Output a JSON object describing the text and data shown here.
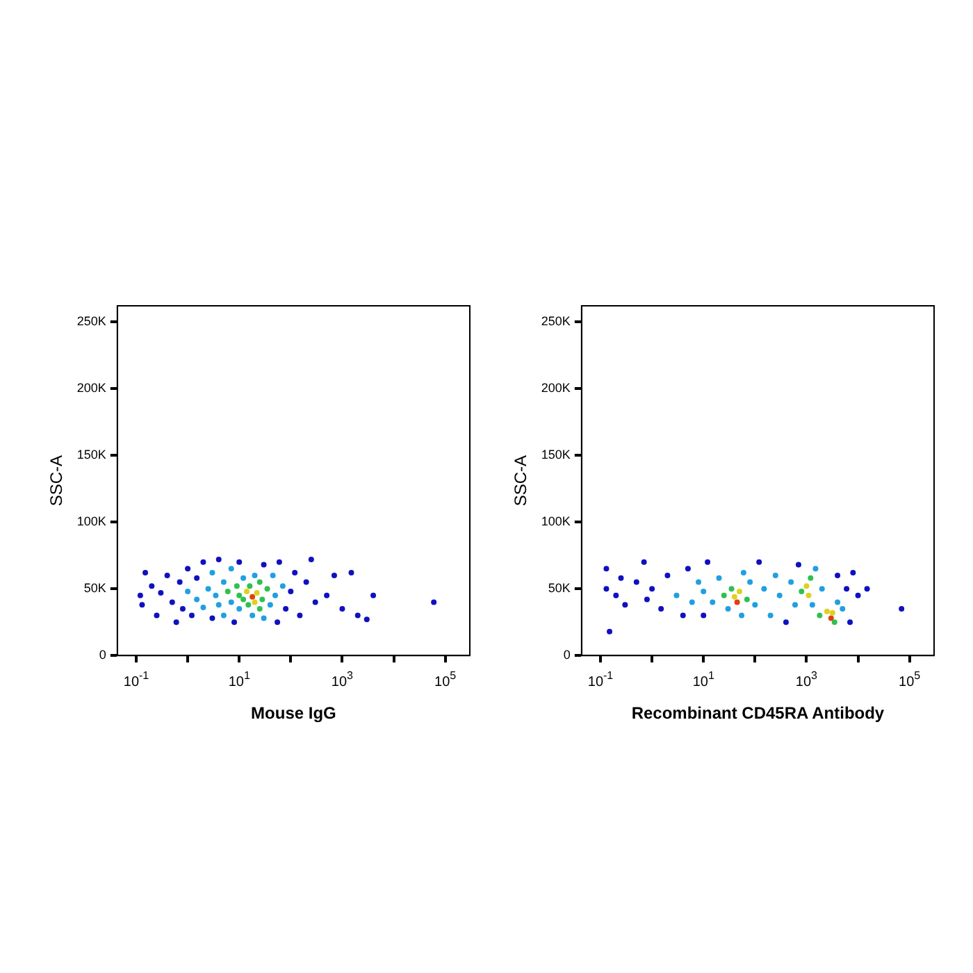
{
  "chart_data": [
    {
      "type": "scatter",
      "xlabel": "Mouse IgG",
      "ylabel": "SSC-A",
      "log": "x",
      "grid": false,
      "legend": false,
      "marker": "circle",
      "xlim": [
        0.043,
        300000
      ],
      "xticks": [
        {
          "value": 0.1,
          "label": "10$^{-1}$"
        },
        {
          "value": 1,
          "label": null
        },
        {
          "value": 10,
          "label": "10$^{1}$"
        },
        {
          "value": 100,
          "label": null
        },
        {
          "value": 1000,
          "label": "10$^{3}$"
        },
        {
          "value": 10000,
          "label": null
        },
        {
          "value": 100000,
          "label": "10$^{5}$"
        }
      ],
      "ylim": [
        0,
        262000
      ],
      "yticks": [
        {
          "value": 0,
          "label": "0"
        },
        {
          "value": 50000,
          "label": "50K"
        },
        {
          "value": 100000,
          "label": "100K"
        },
        {
          "value": 150000,
          "label": "150K"
        },
        {
          "value": 200000,
          "label": "200K"
        },
        {
          "value": 250000,
          "label": "250K"
        }
      ],
      "series": [
        {
          "x": [
            0.12,
            0.13,
            0.15,
            0.2,
            0.25,
            0.3,
            0.4,
            0.5,
            0.6,
            0.7,
            0.8,
            1,
            1,
            1.2,
            1.5,
            1.5,
            2,
            2,
            2.5,
            3,
            3,
            3.5,
            4,
            4,
            5,
            5,
            6,
            7,
            7,
            8,
            9,
            10,
            10,
            10,
            12,
            12,
            14,
            15,
            16,
            18,
            18,
            20,
            20,
            22,
            25,
            25,
            28,
            30,
            30,
            35,
            40,
            45,
            50,
            55,
            60,
            70,
            80,
            100,
            120,
            150,
            200,
            250,
            300,
            500,
            700,
            1000,
            1500,
            2000,
            3000,
            4000,
            60000
          ],
          "values": [
            45000,
            38000,
            62000,
            52000,
            30000,
            47000,
            60000,
            40000,
            25000,
            55000,
            35000,
            65000,
            48000,
            30000,
            58000,
            42000,
            70000,
            36000,
            50000,
            28000,
            62000,
            45000,
            38000,
            72000,
            55000,
            30000,
            48000,
            40000,
            65000,
            25000,
            52000,
            45000,
            35000,
            70000,
            58000,
            42000,
            48000,
            38000,
            52000,
            44000,
            30000,
            40000,
            60000,
            47000,
            35000,
            55000,
            42000,
            68000,
            28000,
            50000,
            38000,
            60000,
            45000,
            25000,
            70000,
            52000,
            35000,
            48000,
            62000,
            30000,
            55000,
            72000,
            40000,
            45000,
            60000,
            35000,
            62000,
            30000,
            27000,
            45000,
            40000
          ],
          "colors": [
            "#1010c0",
            "#1010c0",
            "#1010c0",
            "#1010c0",
            "#1010c0",
            "#1010c0",
            "#1010c0",
            "#1010c0",
            "#1010c0",
            "#1010c0",
            "#1010c0",
            "#1010c0",
            "#20a0e0",
            "#1010c0",
            "#1010c0",
            "#20a0e0",
            "#1010c0",
            "#20a0e0",
            "#20a0e0",
            "#1010c0",
            "#20a0e0",
            "#20a0e0",
            "#20a0e0",
            "#1010c0",
            "#20a0e0",
            "#20a0e0",
            "#30c050",
            "#20a0e0",
            "#20a0e0",
            "#1010c0",
            "#30c050",
            "#30c050",
            "#20a0e0",
            "#1010c0",
            "#20a0e0",
            "#30c050",
            "#e0d020",
            "#30c050",
            "#30c050",
            "#e04010",
            "#20a0e0",
            "#e0d020",
            "#20a0e0",
            "#e0d020",
            "#30c050",
            "#30c050",
            "#30c050",
            "#1010c0",
            "#20a0e0",
            "#30c050",
            "#20a0e0",
            "#20a0e0",
            "#20a0e0",
            "#1010c0",
            "#1010c0",
            "#20a0e0",
            "#1010c0",
            "#1010c0",
            "#1010c0",
            "#1010c0",
            "#1010c0",
            "#1010c0",
            "#1010c0",
            "#1010c0",
            "#1010c0",
            "#1010c0",
            "#1010c0",
            "#1010c0",
            "#1010c0",
            "#1010c0",
            "#1010c0"
          ]
        }
      ]
    },
    {
      "type": "scatter",
      "xlabel": "Recombinant CD45RA Antibody",
      "ylabel": "SSC-A",
      "log": "x",
      "grid": false,
      "legend": false,
      "marker": "circle",
      "xlim": [
        0.043,
        300000
      ],
      "xticks": [
        {
          "value": 0.1,
          "label": "10$^{-1}$"
        },
        {
          "value": 1,
          "label": null
        },
        {
          "value": 10,
          "label": "10$^{1}$"
        },
        {
          "value": 100,
          "label": null
        },
        {
          "value": 1000,
          "label": "10$^{3}$"
        },
        {
          "value": 10000,
          "label": null
        },
        {
          "value": 100000,
          "label": "10$^{5}$"
        }
      ],
      "ylim": [
        0,
        262000
      ],
      "yticks": [
        {
          "value": 0,
          "label": "0"
        },
        {
          "value": 50000,
          "label": "50K"
        },
        {
          "value": 100000,
          "label": "100K"
        },
        {
          "value": 150000,
          "label": "150K"
        },
        {
          "value": 200000,
          "label": "200K"
        },
        {
          "value": 250000,
          "label": "250K"
        }
      ],
      "series": [
        {
          "x": [
            0.13,
            0.13,
            0.15,
            0.2,
            0.25,
            0.3,
            0.5,
            0.7,
            0.8,
            1,
            1.5,
            2,
            3,
            4,
            5,
            6,
            8,
            10,
            10,
            12,
            15,
            20,
            25,
            30,
            35,
            40,
            45,
            50,
            55,
            60,
            70,
            80,
            100,
            120,
            150,
            200,
            250,
            300,
            400,
            500,
            600,
            700,
            800,
            1000,
            1100,
            1200,
            1300,
            1500,
            1800,
            2000,
            2500,
            3000,
            3200,
            3500,
            4000,
            4000,
            5000,
            6000,
            7000,
            8000,
            10000,
            15000,
            70000
          ],
          "values": [
            65000,
            50000,
            18000,
            45000,
            58000,
            38000,
            55000,
            70000,
            42000,
            50000,
            35000,
            60000,
            45000,
            30000,
            65000,
            40000,
            55000,
            48000,
            30000,
            70000,
            40000,
            58000,
            45000,
            35000,
            50000,
            44000,
            40000,
            48000,
            30000,
            62000,
            42000,
            55000,
            38000,
            70000,
            50000,
            30000,
            60000,
            45000,
            25000,
            55000,
            38000,
            68000,
            48000,
            52000,
            45000,
            58000,
            38000,
            65000,
            30000,
            50000,
            33000,
            28000,
            32000,
            25000,
            40000,
            60000,
            35000,
            50000,
            25000,
            62000,
            45000,
            50000,
            35000
          ],
          "colors": [
            "#1010c0",
            "#1010c0",
            "#1010c0",
            "#1010c0",
            "#1010c0",
            "#1010c0",
            "#1010c0",
            "#1010c0",
            "#1010c0",
            "#1010c0",
            "#1010c0",
            "#1010c0",
            "#20a0e0",
            "#1010c0",
            "#1010c0",
            "#20a0e0",
            "#20a0e0",
            "#20a0e0",
            "#1010c0",
            "#1010c0",
            "#20a0e0",
            "#20a0e0",
            "#30c050",
            "#20a0e0",
            "#30c050",
            "#e0d020",
            "#e04010",
            "#e0d020",
            "#20a0e0",
            "#20a0e0",
            "#30c050",
            "#20a0e0",
            "#20a0e0",
            "#1010c0",
            "#20a0e0",
            "#20a0e0",
            "#20a0e0",
            "#20a0e0",
            "#1010c0",
            "#20a0e0",
            "#20a0e0",
            "#1010c0",
            "#30c050",
            "#e0d020",
            "#e0d020",
            "#30c050",
            "#20a0e0",
            "#20a0e0",
            "#30c050",
            "#20a0e0",
            "#e0d020",
            "#e04010",
            "#e0d020",
            "#30c050",
            "#20a0e0",
            "#1010c0",
            "#20a0e0",
            "#1010c0",
            "#1010c0",
            "#1010c0",
            "#1010c0",
            "#1010c0",
            "#1010c0"
          ]
        }
      ]
    }
  ]
}
